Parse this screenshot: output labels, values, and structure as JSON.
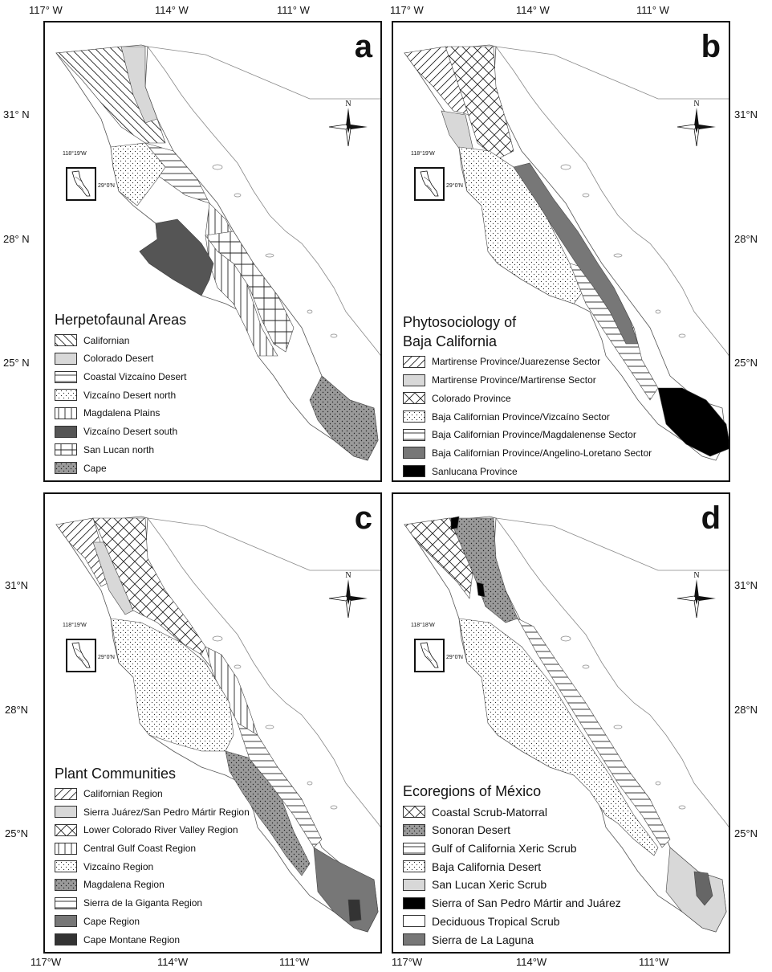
{
  "axes": {
    "lon_top": [
      "117° W",
      "114° W",
      "111° W"
    ],
    "lon_bottom": [
      "117°W",
      "114°W",
      "111°W"
    ],
    "lat_upper_left": [
      "31° N",
      "28° N",
      "25° N"
    ],
    "lat_upper_right": [
      "31°N",
      "28°N",
      "25°N"
    ],
    "lat_lower_left": [
      "31°N",
      "28°N",
      "25°N"
    ],
    "lat_lower_right": [
      "31°N",
      "28°N",
      "25°N"
    ]
  },
  "compass_label": "N",
  "panels": [
    {
      "letter": "a",
      "inset_lon": "118°19'W",
      "inset_lat": "29°0'N",
      "legend_title_lines": [
        "Herpetofaunal Areas"
      ],
      "legend": [
        {
          "label": "Californian",
          "pattern": "diag-back"
        },
        {
          "label": "Colorado Desert",
          "pattern": "lightgray"
        },
        {
          "label": "Coastal Vizcaíno Desert",
          "pattern": "hlines"
        },
        {
          "label": "Vizcaíno Desert north",
          "pattern": "dots"
        },
        {
          "label": "Magdalena Plains",
          "pattern": "vlines"
        },
        {
          "label": "Vizcaíno Desert south",
          "pattern": "darkgray"
        },
        {
          "label": "San Lucan north",
          "pattern": "grid"
        },
        {
          "label": "Cape",
          "pattern": "graydots"
        }
      ]
    },
    {
      "letter": "b",
      "inset_lon": "118°19'W",
      "inset_lat": "29°0'N",
      "legend_title_lines": [
        "Phytosociology of",
        "Baja California"
      ],
      "legend": [
        {
          "label": "Martirense Province/Juarezense Sector",
          "pattern": "diag-fwd"
        },
        {
          "label": "Martirense Province/Martirense Sector",
          "pattern": "lightgray"
        },
        {
          "label": "Colorado Province",
          "pattern": "crosshatch"
        },
        {
          "label": "Baja Californian Province/Vizcaíno Sector",
          "pattern": "dots"
        },
        {
          "label": "Baja Californian Province/Magdalenense Sector",
          "pattern": "hlines"
        },
        {
          "label": "Baja Californian Province/Angelino-Loretano Sector",
          "pattern": "midgray"
        },
        {
          "label": "Sanlucana Province",
          "pattern": "black"
        }
      ]
    },
    {
      "letter": "c",
      "inset_lon": "118°19'W",
      "inset_lat": "29°0'N",
      "legend_title_lines": [
        "Plant Communities"
      ],
      "legend": [
        {
          "label": "Californian Region",
          "pattern": "diag-fwd"
        },
        {
          "label": "Sierra Juárez/San Pedro Mártir Region",
          "pattern": "lightgray"
        },
        {
          "label": "Lower Colorado River Valley Region",
          "pattern": "crosshatch"
        },
        {
          "label": "Central Gulf Coast Region",
          "pattern": "vlines"
        },
        {
          "label": "Vizcaíno Region",
          "pattern": "dots"
        },
        {
          "label": "Magdalena Region",
          "pattern": "graydots"
        },
        {
          "label": "Sierra de la Giganta Region",
          "pattern": "hlines"
        },
        {
          "label": "Cape Region",
          "pattern": "midgray"
        },
        {
          "label": "Cape Montane Region",
          "pattern": "darkgray2"
        }
      ]
    },
    {
      "letter": "d",
      "inset_lon": "118°18'W",
      "inset_lat": "29°0'N",
      "legend_title_lines": [
        "Ecoregions of México"
      ],
      "legend": [
        {
          "label": "Coastal Scrub-Matorral",
          "pattern": "crosshatch"
        },
        {
          "label": "Sonoran Desert",
          "pattern": "graydots"
        },
        {
          "label": "Gulf of California Xeric Scrub",
          "pattern": "hlines"
        },
        {
          "label": "Baja California Desert",
          "pattern": "dots"
        },
        {
          "label": "San Lucan Xeric Scrub",
          "pattern": "lightgray"
        },
        {
          "label": "Sierra of San Pedro Mártir and Juárez",
          "pattern": "black"
        },
        {
          "label": "Deciduous Tropical Scrub",
          "pattern": "white"
        },
        {
          "label": "Sierra de La Laguna",
          "pattern": "midgray"
        }
      ]
    }
  ]
}
